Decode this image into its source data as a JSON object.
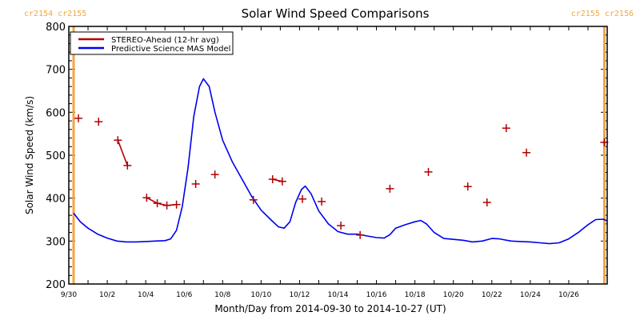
{
  "chart_data": {
    "type": "line",
    "title": "Solar Wind Speed Comparisons",
    "xlabel": "Month/Day from 2014-09-30 to 2014-10-27 (UT)",
    "ylabel": "Solar Wind Speed (km/s)",
    "ylim": [
      200,
      800
    ],
    "xlim_days_from_start": [
      0,
      28
    ],
    "x_tick_labels": [
      "9/30",
      "10/2",
      "10/4",
      "10/6",
      "10/8",
      "10/10",
      "10/12",
      "10/14",
      "10/16",
      "10/18",
      "10/20",
      "10/22",
      "10/24",
      "10/26"
    ],
    "x_tick_days": [
      0,
      2,
      4,
      6,
      8,
      10,
      12,
      14,
      16,
      18,
      20,
      22,
      24,
      26
    ],
    "y_tick_labels": [
      "200",
      "300",
      "400",
      "500",
      "600",
      "700",
      "800"
    ],
    "y_tick_values": [
      200,
      300,
      400,
      500,
      600,
      700,
      800
    ],
    "legend": {
      "position": "top-left",
      "entries": [
        {
          "label": "STEREO-Ahead (12-hr avg)",
          "color": "#b00000"
        },
        {
          "label": "Predictive Science MAS Model",
          "color": "#0000ee"
        }
      ]
    },
    "carrington_markers": [
      {
        "day": 0.25,
        "label_left": "cr2154",
        "label_right": "cr2155",
        "side": "left"
      },
      {
        "day": 27.85,
        "label_left": "cr2155",
        "label_right": "cr2156",
        "side": "right"
      }
    ],
    "marker_color": "#f4a540",
    "series": [
      {
        "name": "STEREO-Ahead (12-hr avg)",
        "color": "#b00000",
        "style": "plus-markers",
        "segments": [
          [
            [
              0.5,
              586
            ]
          ],
          [
            [
              1.55,
              578
            ]
          ],
          [
            [
              2.55,
              535
            ],
            [
              3.05,
              476
            ]
          ],
          [
            [
              4.05,
              401
            ],
            [
              4.6,
              388
            ],
            [
              5.1,
              383
            ],
            [
              5.6,
              385
            ]
          ],
          [
            [
              6.6,
              433
            ]
          ],
          [
            [
              7.6,
              455
            ]
          ],
          [
            [
              9.6,
              396
            ]
          ],
          [
            [
              10.6,
              444
            ],
            [
              11.1,
              439
            ]
          ],
          [
            [
              12.15,
              398
            ]
          ],
          [
            [
              13.15,
              392
            ]
          ],
          [
            [
              14.15,
              336
            ]
          ],
          [
            [
              15.15,
              314
            ]
          ],
          [
            [
              16.7,
              422
            ]
          ],
          [
            [
              18.7,
              461
            ]
          ],
          [
            [
              20.75,
              427
            ]
          ],
          [
            [
              21.75,
              390
            ]
          ],
          [
            [
              22.75,
              563
            ]
          ],
          [
            [
              23.8,
              506
            ]
          ],
          [
            [
              27.85,
              530
            ]
          ]
        ]
      },
      {
        "name": "Predictive Science MAS Model",
        "color": "#0000ee",
        "style": "line",
        "points": [
          [
            0.25,
            365
          ],
          [
            0.6,
            345
          ],
          [
            1.0,
            330
          ],
          [
            1.5,
            316
          ],
          [
            2.0,
            307
          ],
          [
            2.5,
            300
          ],
          [
            3.0,
            298
          ],
          [
            3.5,
            298
          ],
          [
            4.0,
            299
          ],
          [
            4.5,
            300
          ],
          [
            5.0,
            301
          ],
          [
            5.3,
            305
          ],
          [
            5.6,
            325
          ],
          [
            5.9,
            380
          ],
          [
            6.2,
            470
          ],
          [
            6.5,
            590
          ],
          [
            6.8,
            660
          ],
          [
            7.0,
            678
          ],
          [
            7.3,
            660
          ],
          [
            7.6,
            600
          ],
          [
            8.0,
            535
          ],
          [
            8.5,
            485
          ],
          [
            9.0,
            445
          ],
          [
            9.5,
            405
          ],
          [
            10.0,
            372
          ],
          [
            10.5,
            350
          ],
          [
            10.9,
            333
          ],
          [
            11.2,
            330
          ],
          [
            11.5,
            345
          ],
          [
            11.8,
            390
          ],
          [
            12.1,
            420
          ],
          [
            12.3,
            428
          ],
          [
            12.6,
            410
          ],
          [
            13.0,
            370
          ],
          [
            13.5,
            340
          ],
          [
            14.0,
            322
          ],
          [
            14.5,
            316
          ],
          [
            15.0,
            316
          ],
          [
            15.5,
            312
          ],
          [
            16.0,
            308
          ],
          [
            16.4,
            307
          ],
          [
            16.7,
            315
          ],
          [
            17.0,
            330
          ],
          [
            17.5,
            338
          ],
          [
            18.0,
            345
          ],
          [
            18.3,
            348
          ],
          [
            18.6,
            340
          ],
          [
            19.0,
            320
          ],
          [
            19.5,
            306
          ],
          [
            20.0,
            304
          ],
          [
            20.5,
            302
          ],
          [
            21.0,
            298
          ],
          [
            21.5,
            300
          ],
          [
            22.0,
            306
          ],
          [
            22.4,
            305
          ],
          [
            23.0,
            300
          ],
          [
            23.5,
            299
          ],
          [
            24.0,
            298
          ],
          [
            24.5,
            296
          ],
          [
            25.0,
            294
          ],
          [
            25.5,
            296
          ],
          [
            26.0,
            305
          ],
          [
            26.5,
            320
          ],
          [
            27.0,
            338
          ],
          [
            27.4,
            350
          ],
          [
            27.8,
            351
          ],
          [
            28.0,
            347
          ]
        ]
      }
    ]
  }
}
